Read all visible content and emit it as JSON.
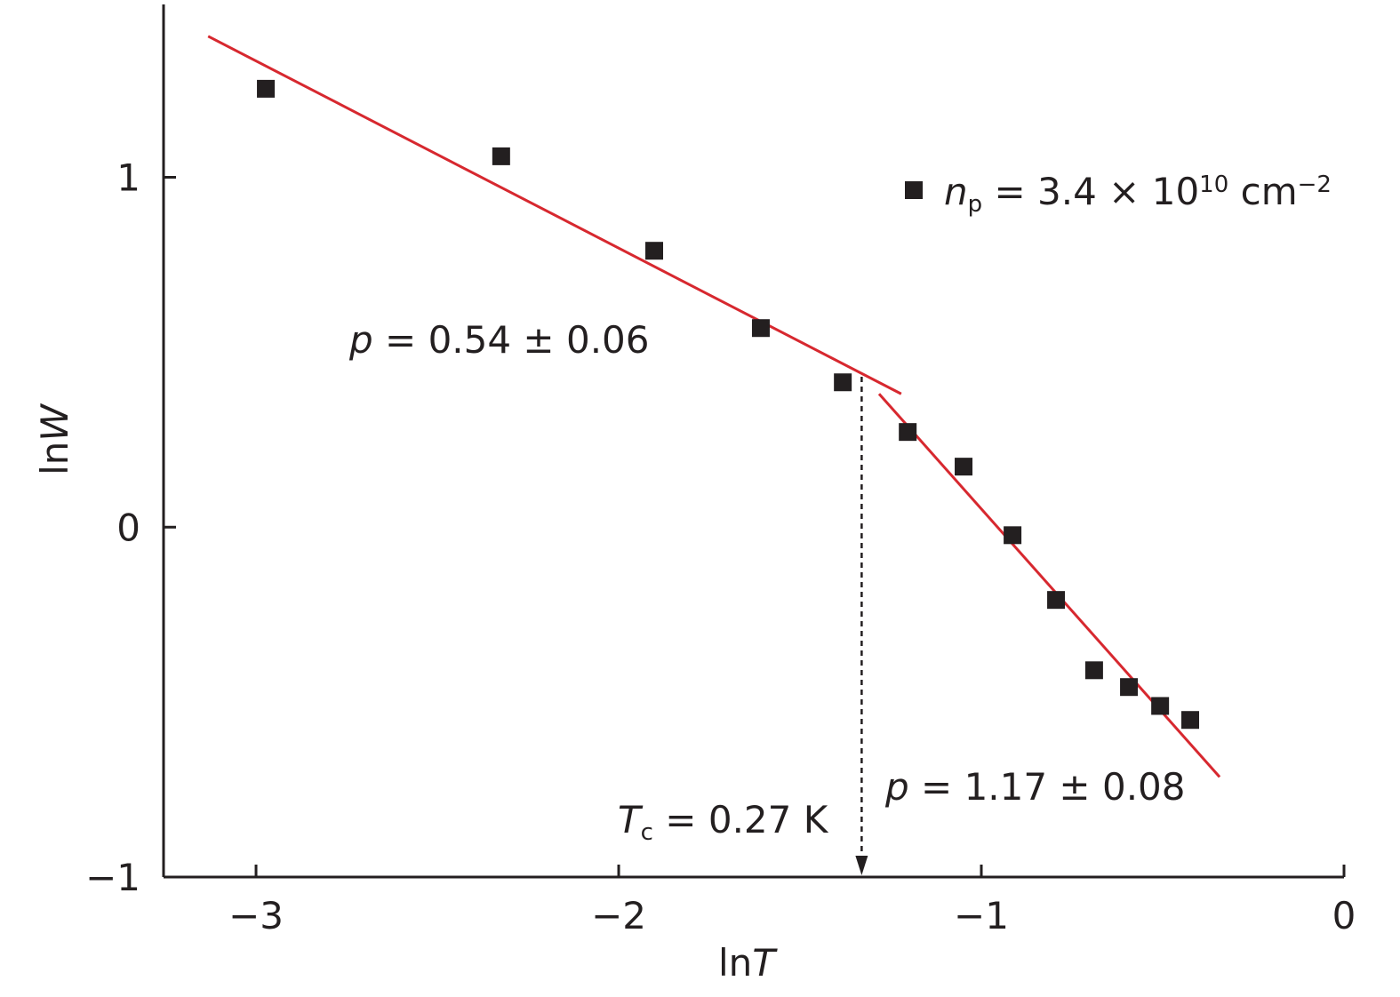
{
  "chart_data": {
    "type": "scatter",
    "xlabel": {
      "text": "ln",
      "var": "T"
    },
    "ylabel": {
      "text": "ln",
      "var": "W"
    },
    "xlim": [
      -3.255,
      0
    ],
    "ylim": [
      -1,
      1.494
    ],
    "xticks": [
      {
        "value": -3,
        "label": "−3"
      },
      {
        "value": -2,
        "label": "−2"
      },
      {
        "value": -1,
        "label": "−1"
      },
      0
    ],
    "yticks": [
      {
        "value": -1,
        "label": "−1"
      },
      0,
      1
    ],
    "series": [
      {
        "name": {
          "var": "n",
          "sub": "p",
          "text": " = 3.4 × 10",
          "exp": "10",
          "unit": " cm",
          "unit_exp": "−2"
        },
        "color": "#231f20",
        "x": [
          -2.973,
          -2.324,
          -1.902,
          -1.608,
          -1.382,
          -1.203,
          -1.049,
          -0.914,
          -0.794,
          -0.689,
          -0.593,
          -0.507,
          -0.424
        ],
        "values": [
          1.253,
          1.06,
          0.79,
          0.569,
          0.414,
          0.272,
          0.173,
          -0.023,
          -0.208,
          -0.409,
          -0.457,
          -0.511,
          -0.551
        ]
      }
    ],
    "fits": [
      {
        "x": [
          -3.132,
          -1.221
        ],
        "y": [
          1.403,
          0.381
        ],
        "color": "#d7282f",
        "label": {
          "var": "p",
          "text": " = 0.54 ± 0.06"
        }
      },
      {
        "x": [
          -1.282,
          -0.343
        ],
        "y": [
          0.381,
          -0.714
        ],
        "color": "#d7282f",
        "label": {
          "var": "p",
          "text": " = 1.17 ± 0.08"
        }
      }
    ],
    "tc_arrow": {
      "x": -1.33,
      "y": [
        0.43,
        -1
      ],
      "label": {
        "var": "T",
        "sub": "c",
        "text": " = 0.27 K"
      }
    }
  }
}
